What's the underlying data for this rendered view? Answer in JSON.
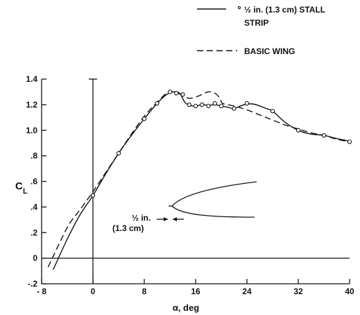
{
  "chart_data": {
    "type": "line",
    "xlabel": "α, deg",
    "ylabel": "C",
    "ylabel_sub": "L",
    "xlim": [
      -8,
      40
    ],
    "ylim": [
      -0.2,
      1.4
    ],
    "xticks": [
      {
        "value": -8,
        "label": "- 8"
      },
      {
        "value": 0,
        "label": "0"
      },
      {
        "value": 8,
        "label": "8"
      },
      {
        "value": 16,
        "label": "16"
      },
      {
        "value": 24,
        "label": "24"
      },
      {
        "value": 32,
        "label": "32"
      },
      {
        "value": 40,
        "label": "40"
      }
    ],
    "yticks": [
      {
        "value": 1.4,
        "label": "1.4"
      },
      {
        "value": 1.2,
        "label": "1.2"
      },
      {
        "value": 1.0,
        "label": "1.0"
      },
      {
        "value": 0.8,
        "label": ".8"
      },
      {
        "value": 0.6,
        "label": ".6"
      },
      {
        "value": 0.4,
        "label": ".4"
      },
      {
        "value": 0.2,
        "label": ".2"
      },
      {
        "value": 0.0,
        "label": "0"
      },
      {
        "value": -0.2,
        "label": "-.2"
      }
    ],
    "legend_position": "top-right",
    "legend": [
      {
        "label": "½ in. (1.3 cm) STALL STRIP",
        "style": "solid",
        "marker": "circle"
      },
      {
        "label": "BASIC WING",
        "style": "dashed"
      }
    ],
    "series": [
      {
        "name": "½ in. (1.3 cm) STALL STRIP",
        "style": "solid",
        "curve": [
          [
            -6.2,
            -0.09
          ],
          [
            -4,
            0.15
          ],
          [
            -2,
            0.34
          ],
          [
            0,
            0.49
          ],
          [
            2,
            0.66
          ],
          [
            4,
            0.82
          ],
          [
            6,
            0.96
          ],
          [
            8,
            1.09
          ],
          [
            10,
            1.21
          ],
          [
            11.5,
            1.28
          ],
          [
            12.5,
            1.3
          ],
          [
            13.5,
            1.29
          ],
          [
            14.3,
            1.22
          ],
          [
            15,
            1.195
          ],
          [
            16,
            1.19
          ],
          [
            17,
            1.2
          ],
          [
            18,
            1.195
          ],
          [
            19,
            1.2
          ],
          [
            20,
            1.19
          ],
          [
            21,
            1.18
          ],
          [
            22,
            1.17
          ],
          [
            23,
            1.19
          ],
          [
            24,
            1.205
          ],
          [
            25,
            1.205
          ],
          [
            26,
            1.19
          ],
          [
            27,
            1.17
          ],
          [
            28,
            1.15
          ],
          [
            30,
            1.06
          ],
          [
            32,
            1.0
          ],
          [
            34,
            0.97
          ],
          [
            36,
            0.96
          ],
          [
            38,
            0.935
          ],
          [
            40,
            0.915
          ]
        ],
        "points": [
          [
            0,
            0.49
          ],
          [
            4,
            0.82
          ],
          [
            8,
            1.09
          ],
          [
            10,
            1.21
          ],
          [
            12,
            1.3
          ],
          [
            13,
            1.29
          ],
          [
            14,
            1.28
          ],
          [
            15,
            1.2
          ],
          [
            16,
            1.19
          ],
          [
            17,
            1.2
          ],
          [
            18,
            1.19
          ],
          [
            19,
            1.21
          ],
          [
            20,
            1.19
          ],
          [
            22,
            1.17
          ],
          [
            24,
            1.21
          ],
          [
            28,
            1.15
          ],
          [
            32,
            1.0
          ],
          [
            36,
            0.96
          ],
          [
            40,
            0.91
          ]
        ]
      },
      {
        "name": "BASIC WING",
        "style": "dashed",
        "curve": [
          [
            -7,
            -0.07
          ],
          [
            -4,
            0.24
          ],
          [
            -2,
            0.38
          ],
          [
            0,
            0.52
          ],
          [
            2,
            0.67
          ],
          [
            4,
            0.82
          ],
          [
            6,
            0.97
          ],
          [
            8,
            1.11
          ],
          [
            10,
            1.22
          ],
          [
            11.5,
            1.29
          ],
          [
            12.5,
            1.3
          ],
          [
            13.3,
            1.29
          ],
          [
            14,
            1.27
          ],
          [
            15,
            1.25
          ],
          [
            16,
            1.26
          ],
          [
            17,
            1.28
          ],
          [
            18,
            1.3
          ],
          [
            19,
            1.29
          ],
          [
            19.8,
            1.25
          ],
          [
            20.2,
            1.21
          ],
          [
            22,
            1.19
          ],
          [
            24,
            1.16
          ],
          [
            26,
            1.12
          ],
          [
            28,
            1.08
          ],
          [
            30,
            1.04
          ],
          [
            32,
            1.01
          ],
          [
            34,
            0.98
          ],
          [
            36,
            0.96
          ],
          [
            38,
            0.93
          ],
          [
            40,
            0.91
          ]
        ]
      }
    ],
    "annotation": {
      "lines": [
        "½ in.",
        "(1.3 cm)"
      ]
    }
  }
}
